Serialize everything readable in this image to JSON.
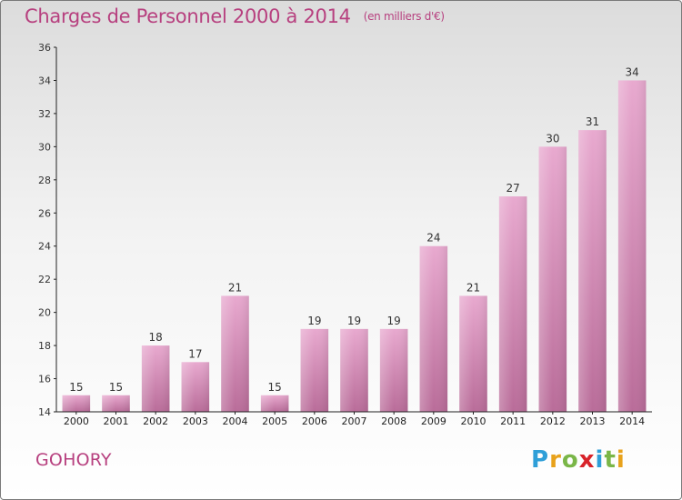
{
  "header": {
    "title": "Charges de Personnel 2000 à 2014",
    "unit": "(en milliers d'€)"
  },
  "footer": {
    "city": "GOHORY",
    "logo": {
      "letters": [
        "P",
        "r",
        "o",
        "x",
        "i",
        "t",
        "i"
      ],
      "colors": [
        "#2f9fd8",
        "#e8a21c",
        "#7ab648",
        "#d8232a",
        "#2f9fd8",
        "#7ab648",
        "#e8a21c"
      ]
    }
  },
  "colors": {
    "title": "#b7407f",
    "bar_top": "#e8a9cf",
    "bar_bottom": "#b96c99",
    "axis": "#222222"
  },
  "chart_data": {
    "type": "bar",
    "title": "Charges de Personnel 2000 à 2014",
    "subtitle": "(en milliers d'€)",
    "xlabel": "",
    "ylabel": "",
    "categories": [
      "2000",
      "2001",
      "2002",
      "2003",
      "2004",
      "2005",
      "2006",
      "2007",
      "2008",
      "2009",
      "2010",
      "2011",
      "2012",
      "2013",
      "2014"
    ],
    "values": [
      15,
      15,
      18,
      17,
      21,
      15,
      19,
      19,
      19,
      24,
      21,
      27,
      30,
      31,
      34
    ],
    "ylim": [
      14,
      36
    ],
    "yticks": [
      14,
      16,
      18,
      20,
      22,
      24,
      26,
      28,
      30,
      32,
      34,
      36
    ],
    "grid": false,
    "legend": "none"
  }
}
